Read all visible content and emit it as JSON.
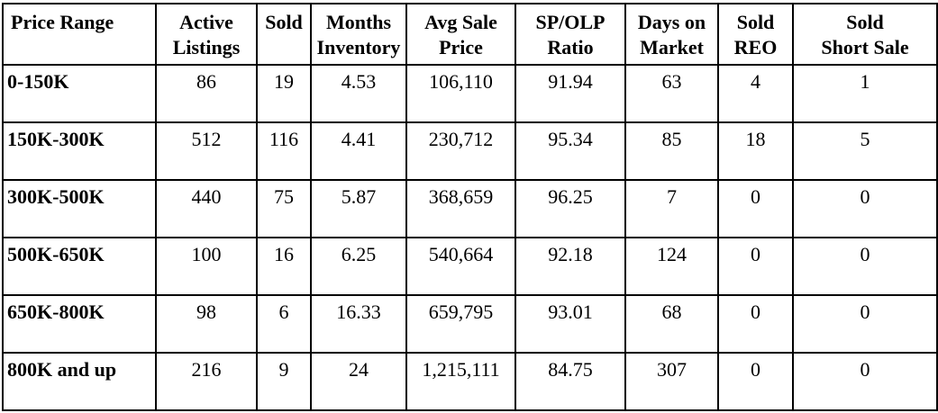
{
  "table": {
    "headers": [
      [
        "Price Range"
      ],
      [
        "Active",
        "Listings"
      ],
      [
        "Sold"
      ],
      [
        "Months",
        "Inventory"
      ],
      [
        "Avg Sale",
        "Price"
      ],
      [
        "SP/OLP",
        "Ratio"
      ],
      [
        "Days on",
        "Market"
      ],
      [
        "Sold",
        "REO"
      ],
      [
        "Sold",
        "Short Sale"
      ]
    ],
    "rows": [
      [
        "0-150K",
        "86",
        "19",
        "4.53",
        "106,110",
        "91.94",
        "63",
        "4",
        "1"
      ],
      [
        "150K-300K",
        "512",
        "116",
        "4.41",
        "230,712",
        "95.34",
        "85",
        "18",
        "5"
      ],
      [
        "300K-500K",
        "440",
        "75",
        "5.87",
        "368,659",
        "96.25",
        "7",
        "0",
        "0"
      ],
      [
        "500K-650K",
        "100",
        "16",
        "6.25",
        "540,664",
        "92.18",
        "124",
        "0",
        "0"
      ],
      [
        "650K-800K",
        "98",
        "6",
        "16.33",
        "659,795",
        "93.01",
        "68",
        "0",
        "0"
      ],
      [
        "800K and up",
        "216",
        "9",
        "24",
        "1,215,111",
        "84.75",
        "307",
        "0",
        "0"
      ]
    ]
  }
}
